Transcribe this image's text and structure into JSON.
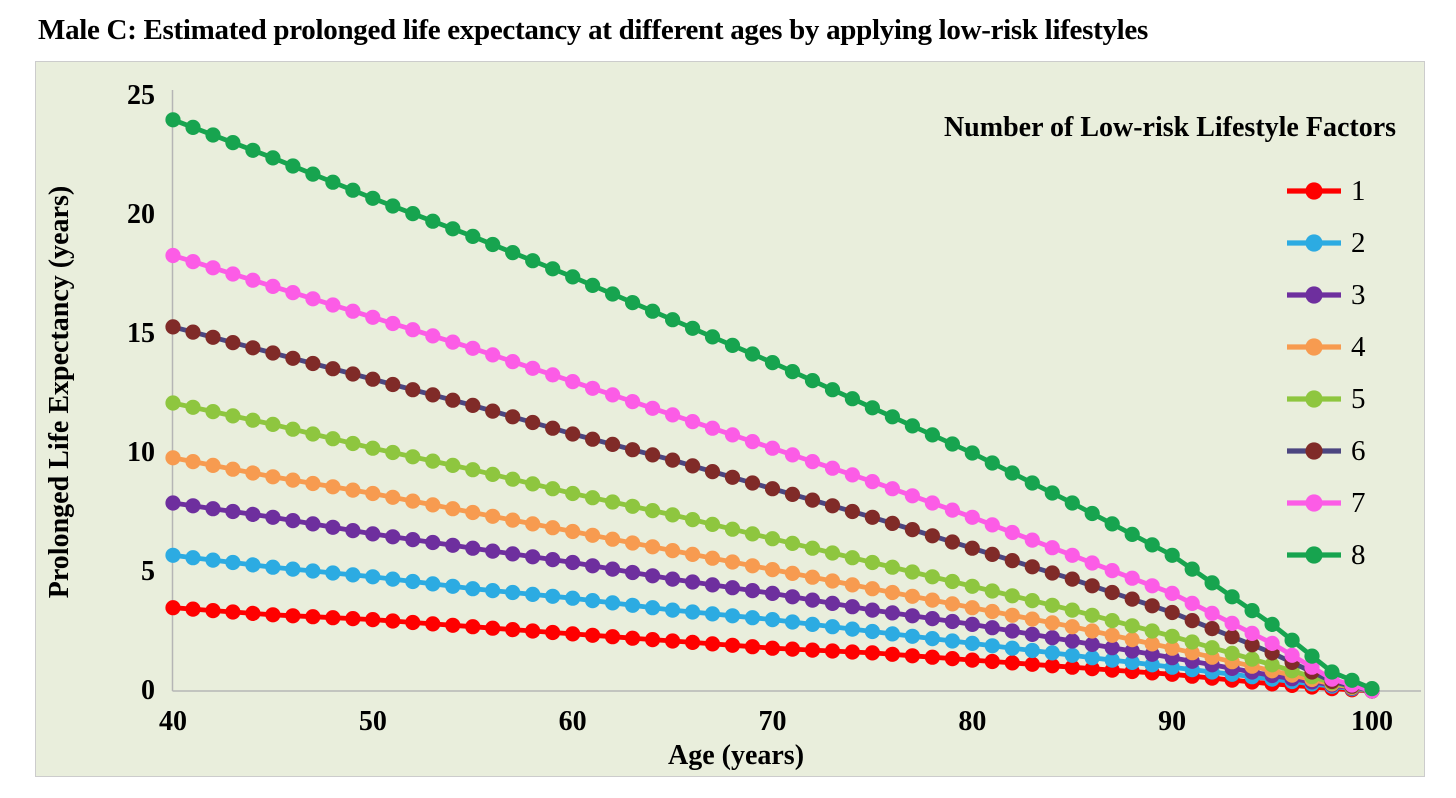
{
  "page": {
    "title": "Male C: Estimated prolonged life expectancy at different ages by applying low-risk lifestyles"
  },
  "chart": {
    "plot_background": "#e9eedc",
    "plot_border_color": "#cccccc",
    "axis_line_color": "#b5b5b5",
    "x_axis": {
      "title": "Age (years)",
      "ticks": [
        40,
        50,
        60,
        70,
        80,
        90,
        100
      ]
    },
    "y_axis": {
      "title": "Prolonged Life Expectancy (years)",
      "ticks": [
        0,
        5,
        10,
        15,
        20,
        25
      ]
    },
    "legend": {
      "title": "Number of Low-risk Lifestyle Factors",
      "position": "right"
    }
  },
  "chart_data": {
    "type": "line",
    "title": "Male C: Estimated prolonged life expectancy at different ages by applying low-risk lifestyles",
    "xlabel": "Age (years)",
    "ylabel": "Prolonged Life Expectancy (years)",
    "xlim": [
      40,
      100
    ],
    "ylim": [
      0,
      25
    ],
    "grid": false,
    "legend_position": "right",
    "marker": "circle",
    "marker_every_years": 1,
    "x": [
      40,
      45,
      50,
      55,
      60,
      65,
      70,
      75,
      80,
      85,
      90,
      95,
      98,
      100
    ],
    "series": [
      {
        "name": "1",
        "color": "#fe0000",
        "line_color": "#fe0000",
        "values": [
          3.5,
          3.2,
          3.0,
          2.7,
          2.4,
          2.1,
          1.8,
          1.6,
          1.3,
          1.0,
          0.7,
          0.3,
          0.1,
          0.0
        ]
      },
      {
        "name": "2",
        "color": "#2cabe2",
        "line_color": "#2cabe2",
        "values": [
          5.7,
          5.2,
          4.8,
          4.3,
          3.9,
          3.4,
          3.0,
          2.5,
          2.0,
          1.5,
          1.0,
          0.5,
          0.2,
          0.0
        ]
      },
      {
        "name": "3",
        "color": "#6e2f9e",
        "line_color": "#6e2f9e",
        "values": [
          7.9,
          7.3,
          6.6,
          6.0,
          5.4,
          4.7,
          4.1,
          3.4,
          2.8,
          2.1,
          1.4,
          0.65,
          0.25,
          0.0
        ]
      },
      {
        "name": "4",
        "color": "#f79b50",
        "line_color": "#f79b50",
        "values": [
          9.8,
          9.0,
          8.3,
          7.5,
          6.7,
          5.9,
          5.1,
          4.3,
          3.5,
          2.7,
          1.8,
          0.85,
          0.3,
          0.0
        ]
      },
      {
        "name": "5",
        "color": "#8ec63f",
        "line_color": "#8ec63f",
        "values": [
          12.1,
          11.2,
          10.2,
          9.3,
          8.3,
          7.4,
          6.4,
          5.4,
          4.4,
          3.4,
          2.3,
          1.1,
          0.35,
          0.0
        ]
      },
      {
        "name": "6",
        "color": "#802b28",
        "line_color": "#4c4680",
        "values": [
          15.3,
          14.2,
          13.1,
          12.0,
          10.8,
          9.7,
          8.5,
          7.3,
          6.0,
          4.7,
          3.3,
          1.6,
          0.4,
          0.0
        ]
      },
      {
        "name": "7",
        "color": "#fc5ce6",
        "line_color": "#fc5ce6",
        "values": [
          18.3,
          17.0,
          15.7,
          14.4,
          13.0,
          11.6,
          10.2,
          8.8,
          7.3,
          5.7,
          4.1,
          2.0,
          0.5,
          0.0
        ]
      },
      {
        "name": "8",
        "color": "#17a44f",
        "line_color": "#17a44f",
        "values": [
          24.0,
          22.4,
          20.7,
          19.1,
          17.4,
          15.6,
          13.8,
          11.9,
          10.0,
          7.9,
          5.7,
          2.8,
          0.8,
          0.1
        ]
      }
    ]
  }
}
